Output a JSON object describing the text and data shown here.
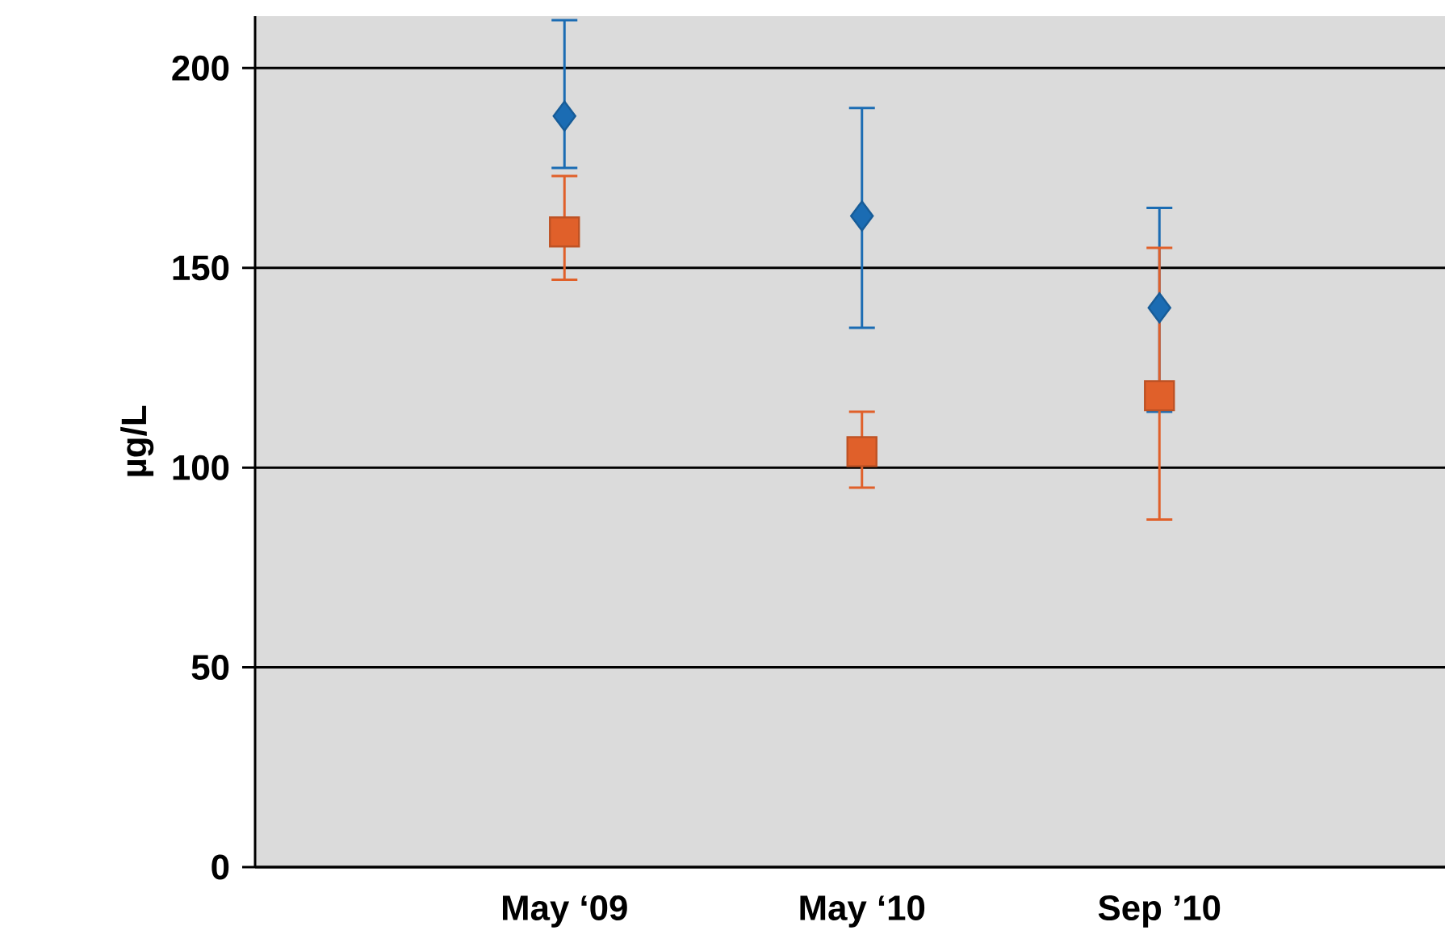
{
  "chart_data": {
    "type": "scatter",
    "ylabel": "µg/L",
    "categories": [
      "May ‘09",
      "May ‘10",
      "Sep ’10"
    ],
    "series": [
      {
        "color": "#1b6cb3",
        "marker": "diamond",
        "values": [
          188,
          163,
          140
        ],
        "errors": [
          [
            175,
            212
          ],
          [
            135,
            190
          ],
          [
            114,
            165
          ]
        ]
      },
      {
        "color": "#e0602a",
        "marker": "square",
        "values": [
          159,
          104,
          118
        ],
        "errors": [
          [
            147,
            173
          ],
          [
            95,
            114
          ],
          [
            87,
            155
          ]
        ]
      }
    ],
    "ylim": [
      0,
      213
    ],
    "yticks": [
      0,
      50,
      100,
      150,
      200
    ],
    "grid": "y"
  }
}
